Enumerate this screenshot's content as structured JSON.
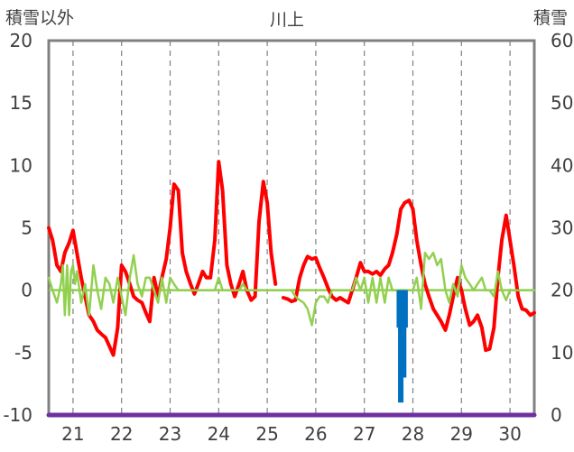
{
  "chart_data": {
    "type": "line",
    "title": "川上",
    "ylabel_left": "積雪以外",
    "ylabel_right": "積雪",
    "x_ticks": [
      "21",
      "22",
      "23",
      "24",
      "25",
      "26",
      "27",
      "28",
      "29",
      "30"
    ],
    "xlim": [
      20.5,
      30.5
    ],
    "ylim_left": [
      -10,
      20
    ],
    "ylim_right": [
      0,
      60
    ],
    "y_ticks_left": [
      20,
      15,
      10,
      5,
      0,
      -5,
      -10
    ],
    "y_ticks_right": [
      60,
      50,
      40,
      30,
      20,
      10,
      0
    ],
    "grid": true,
    "colors": {
      "red_line": "#ff0000",
      "green_line": "#92d050",
      "blue_bar": "#0070c0",
      "purple_line": "#7030a0",
      "frame": "#808080",
      "grid": "#808080"
    },
    "series": [
      {
        "kind": "line",
        "axis": "left",
        "color": "#ff0000",
        "segments": [
          [
            [
              20.5,
              5.0
            ],
            [
              20.58,
              4.0
            ],
            [
              20.67,
              2.0
            ],
            [
              20.75,
              1.5
            ],
            [
              20.83,
              3.0
            ],
            [
              20.92,
              3.8
            ],
            [
              21.0,
              4.8
            ],
            [
              21.08,
              3.0
            ],
            [
              21.17,
              1.0
            ],
            [
              21.25,
              -0.5
            ],
            [
              21.33,
              -2.0
            ],
            [
              21.42,
              -2.5
            ],
            [
              21.5,
              -3.2
            ],
            [
              21.58,
              -3.5
            ],
            [
              21.67,
              -3.8
            ],
            [
              21.75,
              -4.5
            ],
            [
              21.83,
              -5.2
            ],
            [
              21.92,
              -3.0
            ],
            [
              22.0,
              2.0
            ],
            [
              22.08,
              1.5
            ],
            [
              22.17,
              0.5
            ],
            [
              22.25,
              -0.5
            ],
            [
              22.33,
              -0.8
            ],
            [
              22.42,
              -1.0
            ],
            [
              22.5,
              -1.8
            ],
            [
              22.58,
              -2.5
            ],
            [
              22.67,
              1.0
            ],
            [
              22.75,
              -0.5
            ],
            [
              22.83,
              1.0
            ],
            [
              22.92,
              2.5
            ],
            [
              23.0,
              5.0
            ],
            [
              23.08,
              8.5
            ],
            [
              23.17,
              8.0
            ],
            [
              23.25,
              3.0
            ],
            [
              23.33,
              1.5
            ],
            [
              23.42,
              0.5
            ],
            [
              23.5,
              -0.3
            ],
            [
              23.58,
              0.5
            ],
            [
              23.67,
              1.5
            ],
            [
              23.75,
              1.0
            ],
            [
              23.83,
              1.0
            ],
            [
              23.92,
              4.0
            ],
            [
              24.0,
              10.3
            ],
            [
              24.08,
              8.0
            ],
            [
              24.17,
              2.0
            ],
            [
              24.25,
              0.5
            ],
            [
              24.33,
              -0.5
            ],
            [
              24.42,
              0.5
            ],
            [
              24.5,
              1.5
            ],
            [
              24.58,
              0.0
            ],
            [
              24.67,
              -0.8
            ],
            [
              24.75,
              -0.5
            ],
            [
              24.83,
              5.5
            ],
            [
              24.92,
              8.7
            ],
            [
              25.0,
              7.0
            ],
            [
              25.08,
              3.0
            ],
            [
              25.17,
              0.5
            ]
          ],
          [
            [
              25.33,
              -0.6
            ],
            [
              25.42,
              -0.7
            ],
            [
              25.5,
              -0.9
            ],
            [
              25.58,
              -0.8
            ],
            [
              25.67,
              1.0
            ],
            [
              25.75,
              2.0
            ],
            [
              25.83,
              2.7
            ],
            [
              25.92,
              2.5
            ],
            [
              26.0,
              2.6
            ],
            [
              26.08,
              1.8
            ],
            [
              26.17,
              1.0
            ],
            [
              26.25,
              0.2
            ],
            [
              26.33,
              -0.5
            ],
            [
              26.42,
              -0.8
            ],
            [
              26.5,
              -0.6
            ],
            [
              26.58,
              -0.8
            ],
            [
              26.67,
              -1.0
            ],
            [
              26.75,
              0.0
            ],
            [
              26.83,
              1.0
            ],
            [
              26.92,
              2.2
            ],
            [
              27.0,
              1.5
            ],
            [
              27.08,
              1.5
            ],
            [
              27.17,
              1.3
            ],
            [
              27.25,
              1.5
            ],
            [
              27.33,
              1.2
            ],
            [
              27.42,
              1.7
            ],
            [
              27.5,
              2.0
            ],
            [
              27.58,
              3.0
            ],
            [
              27.67,
              4.5
            ],
            [
              27.75,
              6.5
            ],
            [
              27.83,
              7.0
            ],
            [
              27.92,
              7.2
            ],
            [
              28.0,
              6.5
            ],
            [
              28.08,
              4.0
            ],
            [
              28.17,
              2.0
            ],
            [
              28.25,
              0.5
            ],
            [
              28.33,
              -0.5
            ],
            [
              28.42,
              -1.5
            ],
            [
              28.5,
              -2.0
            ],
            [
              28.58,
              -2.5
            ],
            [
              28.67,
              -3.2
            ],
            [
              28.75,
              -2.0
            ],
            [
              28.83,
              -0.5
            ],
            [
              28.92,
              1.0
            ],
            [
              29.0,
              0.0
            ],
            [
              29.08,
              -1.5
            ],
            [
              29.17,
              -2.8
            ],
            [
              29.25,
              -2.5
            ],
            [
              29.33,
              -2.0
            ],
            [
              29.42,
              -3.0
            ],
            [
              29.5,
              -4.8
            ],
            [
              29.58,
              -4.7
            ],
            [
              29.67,
              -3.0
            ],
            [
              29.75,
              1.0
            ],
            [
              29.83,
              4.0
            ],
            [
              29.92,
              6.0
            ],
            [
              30.0,
              4.0
            ],
            [
              30.08,
              2.0
            ],
            [
              30.17,
              -0.5
            ],
            [
              30.25,
              -1.5
            ],
            [
              30.33,
              -1.6
            ],
            [
              30.42,
              -2.0
            ],
            [
              30.5,
              -1.8
            ]
          ]
        ]
      },
      {
        "kind": "line",
        "axis": "left",
        "color": "#92d050",
        "segments": [
          [
            [
              20.5,
              1.0
            ],
            [
              20.58,
              0.0
            ],
            [
              20.67,
              -1.0
            ],
            [
              20.75,
              0.5
            ],
            [
              20.79,
              2.0
            ],
            [
              20.83,
              -2.0
            ],
            [
              20.88,
              2.0
            ],
            [
              20.92,
              -2.0
            ],
            [
              20.96,
              1.5
            ],
            [
              21.0,
              2.0
            ],
            [
              21.04,
              0.5
            ],
            [
              21.08,
              1.5
            ],
            [
              21.17,
              -1.0
            ],
            [
              21.25,
              0.5
            ],
            [
              21.33,
              -2.0
            ],
            [
              21.42,
              2.0
            ],
            [
              21.5,
              0.0
            ],
            [
              21.58,
              -1.5
            ],
            [
              21.67,
              1.0
            ],
            [
              21.75,
              0.5
            ],
            [
              21.83,
              -1.0
            ],
            [
              21.92,
              1.0
            ],
            [
              22.0,
              -0.5
            ],
            [
              22.08,
              -2.0
            ],
            [
              22.17,
              1.0
            ],
            [
              22.25,
              2.8
            ],
            [
              22.33,
              0.5
            ],
            [
              22.42,
              -0.5
            ],
            [
              22.5,
              1.0
            ],
            [
              22.58,
              1.0
            ],
            [
              22.67,
              0.0
            ],
            [
              22.75,
              -1.0
            ],
            [
              22.83,
              1.0
            ],
            [
              22.92,
              -1.0
            ],
            [
              23.0,
              1.0
            ],
            [
              23.08,
              0.5
            ],
            [
              23.17,
              0.0
            ],
            [
              23.25,
              0.0
            ],
            [
              23.33,
              0.0
            ],
            [
              23.42,
              0.0
            ],
            [
              23.5,
              0.0
            ],
            [
              23.58,
              0.0
            ],
            [
              23.67,
              0.0
            ],
            [
              23.75,
              0.0
            ],
            [
              23.83,
              0.0
            ],
            [
              23.92,
              0.0
            ],
            [
              24.0,
              1.0
            ],
            [
              24.08,
              0.0
            ],
            [
              24.17,
              0.0
            ],
            [
              24.25,
              0.0
            ],
            [
              24.33,
              0.0
            ],
            [
              24.42,
              0.0
            ],
            [
              24.5,
              0.5
            ],
            [
              24.58,
              0.0
            ],
            [
              24.67,
              0.0
            ],
            [
              24.75,
              0.0
            ],
            [
              24.83,
              0.0
            ],
            [
              24.92,
              0.0
            ],
            [
              25.0,
              0.0
            ],
            [
              25.08,
              0.0
            ],
            [
              25.17,
              0.0
            ],
            [
              25.25,
              0.0
            ],
            [
              25.33,
              0.0
            ],
            [
              25.42,
              0.0
            ],
            [
              25.5,
              0.0
            ],
            [
              25.58,
              -0.5
            ],
            [
              25.67,
              -0.8
            ],
            [
              25.75,
              -1.0
            ],
            [
              25.83,
              -1.5
            ],
            [
              25.92,
              -2.8
            ],
            [
              26.0,
              -1.0
            ],
            [
              26.08,
              -0.5
            ],
            [
              26.17,
              -0.5
            ],
            [
              26.25,
              -1.0
            ],
            [
              26.33,
              0.0
            ],
            [
              26.42,
              0.0
            ],
            [
              26.5,
              0.0
            ],
            [
              26.58,
              0.0
            ],
            [
              26.67,
              0.0
            ],
            [
              26.75,
              0.0
            ],
            [
              26.83,
              1.0
            ],
            [
              26.92,
              0.0
            ],
            [
              27.0,
              1.0
            ],
            [
              27.08,
              -1.0
            ],
            [
              27.17,
              1.0
            ],
            [
              27.25,
              -1.0
            ],
            [
              27.33,
              1.0
            ],
            [
              27.42,
              -1.0
            ],
            [
              27.5,
              1.0
            ],
            [
              27.58,
              0.0
            ],
            [
              27.67,
              0.0
            ],
            [
              27.75,
              0.0
            ],
            [
              27.83,
              0.0
            ],
            [
              27.92,
              0.0
            ],
            [
              28.0,
              0.0
            ],
            [
              28.08,
              1.0
            ],
            [
              28.17,
              -1.5
            ],
            [
              28.25,
              3.0
            ],
            [
              28.33,
              2.5
            ],
            [
              28.42,
              3.0
            ],
            [
              28.5,
              2.0
            ],
            [
              28.58,
              2.5
            ],
            [
              28.67,
              0.0
            ],
            [
              28.75,
              -1.0
            ],
            [
              28.83,
              0.5
            ],
            [
              28.92,
              -0.5
            ],
            [
              29.0,
              2.0
            ],
            [
              29.08,
              1.0
            ],
            [
              29.17,
              0.5
            ],
            [
              29.25,
              0.0
            ],
            [
              29.33,
              0.5
            ],
            [
              29.42,
              1.0
            ],
            [
              29.5,
              0.0
            ],
            [
              29.58,
              0.0
            ],
            [
              29.67,
              -0.5
            ],
            [
              29.75,
              1.5
            ],
            [
              29.83,
              0.0
            ],
            [
              29.92,
              -0.8
            ],
            [
              30.0,
              0.0
            ],
            [
              30.08,
              0.0
            ],
            [
              30.17,
              0.0
            ],
            [
              30.25,
              0.0
            ],
            [
              30.33,
              0.0
            ],
            [
              30.42,
              0.0
            ],
            [
              30.5,
              0.0
            ]
          ]
        ]
      },
      {
        "kind": "bar",
        "axis": "left",
        "color": "#0070c0",
        "points": [
          [
            27.72,
            -3.0
          ],
          [
            27.75,
            -9.0
          ],
          [
            27.78,
            -3.0
          ],
          [
            27.81,
            -7.0
          ],
          [
            27.84,
            -3.0
          ]
        ]
      },
      {
        "kind": "line",
        "axis": "right",
        "color": "#7030a0",
        "segments": [
          [
            [
              20.5,
              0.0
            ],
            [
              30.5,
              0.0
            ]
          ]
        ]
      }
    ]
  }
}
